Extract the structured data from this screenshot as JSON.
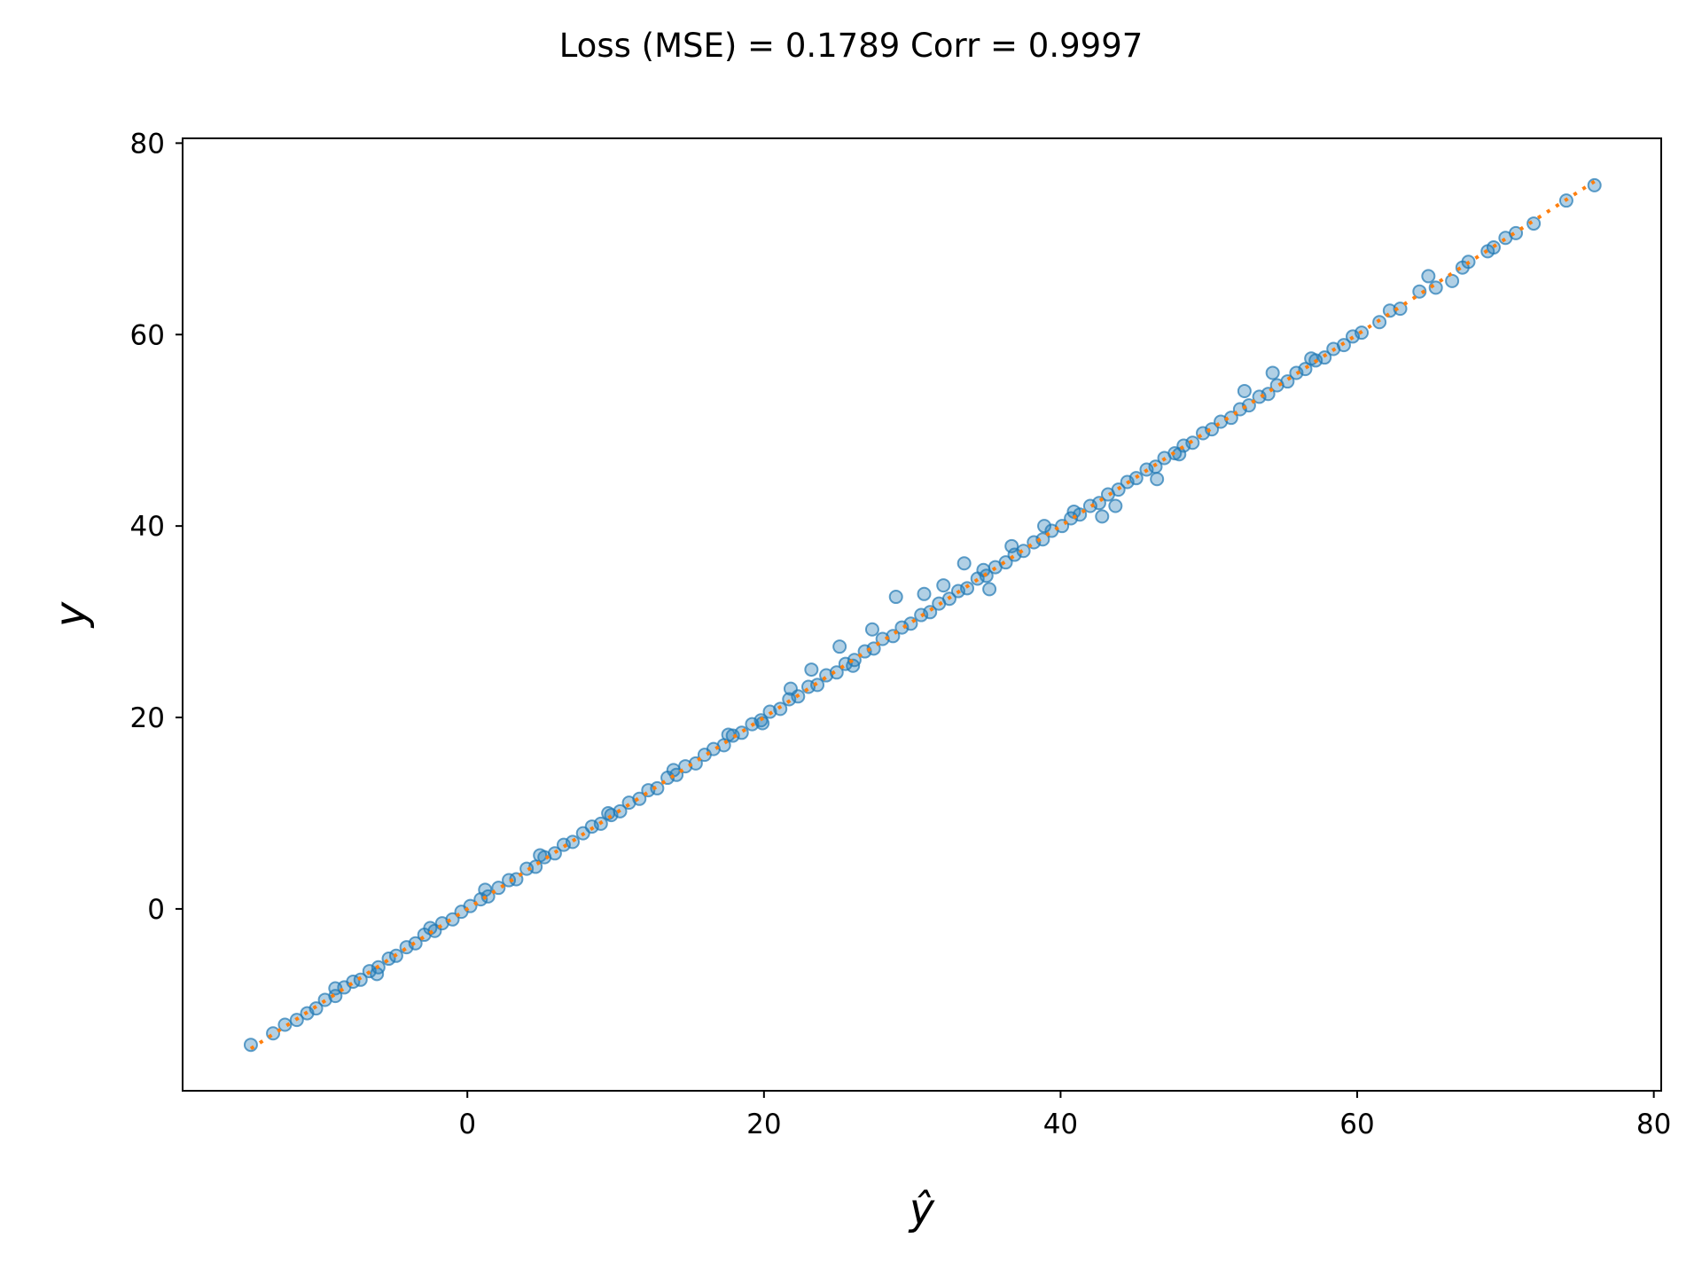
{
  "chart_data": {
    "type": "scatter",
    "title": "Loss (MSE) = 0.1789 Corr = 0.9997",
    "xlabel": "ŷ",
    "ylabel": "y",
    "xlim": [
      -19.2,
      80.5
    ],
    "ylim": [
      -19,
      80.5
    ],
    "xticks": [
      0,
      20,
      40,
      60,
      80
    ],
    "yticks": [
      0,
      20,
      40,
      60,
      80
    ],
    "grid": false,
    "series": [
      {
        "kind": "points",
        "color": "#1f77b4",
        "points": [
          [
            -14.6,
            -14.2
          ],
          [
            -13.1,
            -13.0
          ],
          [
            -12.3,
            -12.1
          ],
          [
            -11.5,
            -11.6
          ],
          [
            -10.8,
            -10.9
          ],
          [
            -10.2,
            -10.4
          ],
          [
            -9.6,
            -9.5
          ],
          [
            -8.9,
            -9.1
          ],
          [
            -8.3,
            -8.2
          ],
          [
            -7.7,
            -7.6
          ],
          [
            -7.2,
            -7.4
          ],
          [
            -6.6,
            -6.5
          ],
          [
            -6.0,
            -6.1
          ],
          [
            -5.3,
            -5.2
          ],
          [
            -4.8,
            -4.9
          ],
          [
            -4.1,
            -4.0
          ],
          [
            -3.5,
            -3.6
          ],
          [
            -2.9,
            -2.7
          ],
          [
            -2.2,
            -2.3
          ],
          [
            -1.7,
            -1.5
          ],
          [
            -1.0,
            -1.1
          ],
          [
            -0.4,
            -0.3
          ],
          [
            0.2,
            0.3
          ],
          [
            0.9,
            1.0
          ],
          [
            1.4,
            1.3
          ],
          [
            2.1,
            2.2
          ],
          [
            2.8,
            3.0
          ],
          [
            3.3,
            3.1
          ],
          [
            4.0,
            4.2
          ],
          [
            4.6,
            4.4
          ],
          [
            5.2,
            5.4
          ],
          [
            5.9,
            5.8
          ],
          [
            6.5,
            6.7
          ],
          [
            7.1,
            7.0
          ],
          [
            7.8,
            7.9
          ],
          [
            8.4,
            8.6
          ],
          [
            9.0,
            8.9
          ],
          [
            9.7,
            9.8
          ],
          [
            10.3,
            10.2
          ],
          [
            10.9,
            11.1
          ],
          [
            11.6,
            11.5
          ],
          [
            12.2,
            12.4
          ],
          [
            12.8,
            12.6
          ],
          [
            13.5,
            13.7
          ],
          [
            14.1,
            14.0
          ],
          [
            14.7,
            14.9
          ],
          [
            15.4,
            15.2
          ],
          [
            16.0,
            16.1
          ],
          [
            16.6,
            16.7
          ],
          [
            17.3,
            17.1
          ],
          [
            17.9,
            18.1
          ],
          [
            18.5,
            18.4
          ],
          [
            19.2,
            19.3
          ],
          [
            19.8,
            19.7
          ],
          [
            20.4,
            20.6
          ],
          [
            21.1,
            20.9
          ],
          [
            21.7,
            21.9
          ],
          [
            22.3,
            22.2
          ],
          [
            23.0,
            23.2
          ],
          [
            23.6,
            23.4
          ],
          [
            24.2,
            24.4
          ],
          [
            24.9,
            24.7
          ],
          [
            25.5,
            25.6
          ],
          [
            26.1,
            26.0
          ],
          [
            26.8,
            26.9
          ],
          [
            27.4,
            27.2
          ],
          [
            28.0,
            28.2
          ],
          [
            28.7,
            28.5
          ],
          [
            29.3,
            29.4
          ],
          [
            29.9,
            29.8
          ],
          [
            30.6,
            30.7
          ],
          [
            31.2,
            31.0
          ],
          [
            31.8,
            31.9
          ],
          [
            32.5,
            32.4
          ],
          [
            33.1,
            33.2
          ],
          [
            33.7,
            33.5
          ],
          [
            34.4,
            34.5
          ],
          [
            35.0,
            34.8
          ],
          [
            35.6,
            35.7
          ],
          [
            36.3,
            36.2
          ],
          [
            36.9,
            37.0
          ],
          [
            37.5,
            37.4
          ],
          [
            38.2,
            38.3
          ],
          [
            38.8,
            38.6
          ],
          [
            39.4,
            39.5
          ],
          [
            40.1,
            40.0
          ],
          [
            40.7,
            40.8
          ],
          [
            41.3,
            41.2
          ],
          [
            42.0,
            42.1
          ],
          [
            42.6,
            42.4
          ],
          [
            43.2,
            43.3
          ],
          [
            43.9,
            43.8
          ],
          [
            44.5,
            44.6
          ],
          [
            45.1,
            45.0
          ],
          [
            45.8,
            45.9
          ],
          [
            46.4,
            46.2
          ],
          [
            47.0,
            47.1
          ],
          [
            47.7,
            47.6
          ],
          [
            48.3,
            48.4
          ],
          [
            48.9,
            48.7
          ],
          [
            49.6,
            49.7
          ],
          [
            50.2,
            50.1
          ],
          [
            50.8,
            50.9
          ],
          [
            51.5,
            51.3
          ],
          [
            52.1,
            52.2
          ],
          [
            52.7,
            52.6
          ],
          [
            53.4,
            53.5
          ],
          [
            54.0,
            53.8
          ],
          [
            54.6,
            54.7
          ],
          [
            55.3,
            55.1
          ],
          [
            55.9,
            56.0
          ],
          [
            56.5,
            56.4
          ],
          [
            57.2,
            57.3
          ],
          [
            57.8,
            57.6
          ],
          [
            58.4,
            58.5
          ],
          [
            59.1,
            58.9
          ],
          [
            59.7,
            59.8
          ],
          [
            60.3,
            60.2
          ],
          [
            61.5,
            61.3
          ],
          [
            62.2,
            62.5
          ],
          [
            62.9,
            62.7
          ],
          [
            64.2,
            64.5
          ],
          [
            64.8,
            66.1
          ],
          [
            65.3,
            64.9
          ],
          [
            66.4,
            65.6
          ],
          [
            67.1,
            67.0
          ],
          [
            67.5,
            67.6
          ],
          [
            68.8,
            68.7
          ],
          [
            69.2,
            69.1
          ],
          [
            70.0,
            70.1
          ],
          [
            70.7,
            70.6
          ],
          [
            71.9,
            71.6
          ],
          [
            74.1,
            74.0
          ],
          [
            76.0,
            75.6
          ],
          [
            28.9,
            32.6
          ],
          [
            25.1,
            27.4
          ],
          [
            33.5,
            36.1
          ],
          [
            43.7,
            42.1
          ],
          [
            35.2,
            33.4
          ],
          [
            52.4,
            54.1
          ],
          [
            38.9,
            40.0
          ],
          [
            23.2,
            25.0
          ],
          [
            32.1,
            33.8
          ],
          [
            46.5,
            44.9
          ],
          [
            54.3,
            56.0
          ],
          [
            30.8,
            32.9
          ],
          [
            36.7,
            37.9
          ],
          [
            42.8,
            41.0
          ],
          [
            27.3,
            29.2
          ],
          [
            21.8,
            23.0
          ],
          [
            17.6,
            18.2
          ],
          [
            9.5,
            10.0
          ],
          [
            4.9,
            5.6
          ],
          [
            1.2,
            2.0
          ],
          [
            -2.5,
            -2.0
          ],
          [
            -6.1,
            -6.8
          ],
          [
            -8.9,
            -8.3
          ],
          [
            13.9,
            14.5
          ],
          [
            19.9,
            19.4
          ],
          [
            26.0,
            25.4
          ],
          [
            34.8,
            35.4
          ],
          [
            40.9,
            41.5
          ],
          [
            48.0,
            47.5
          ],
          [
            56.9,
            57.5
          ]
        ]
      },
      {
        "kind": "line",
        "color": "#ff7f0e",
        "x": [
          -14.6,
          76.0
        ],
        "y": [
          -14.6,
          76.0
        ]
      }
    ]
  }
}
